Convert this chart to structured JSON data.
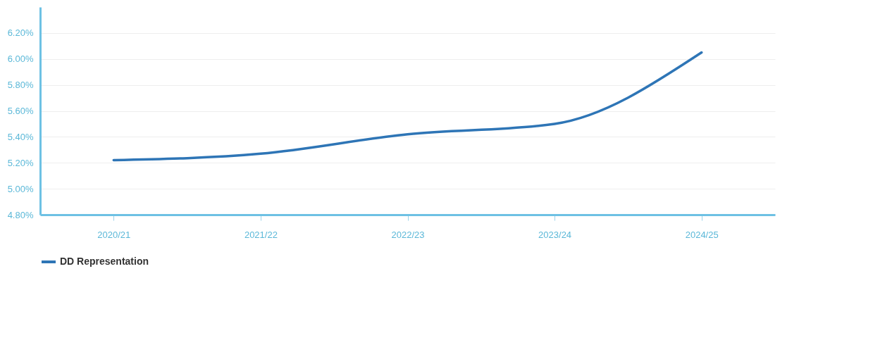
{
  "chart_data": {
    "type": "line",
    "categories": [
      "2020/21",
      "2021/22",
      "2022/23",
      "2023/24",
      "2024/25"
    ],
    "series": [
      {
        "name": "DD Representation",
        "color": "#2e75b6",
        "values": [
          5.22,
          5.27,
          5.42,
          5.5,
          6.05
        ]
      }
    ],
    "ylim": [
      4.8,
      6.4
    ],
    "yticks": [
      {
        "value": 4.8,
        "label": "4.80%"
      },
      {
        "value": 5.0,
        "label": "5.00%"
      },
      {
        "value": 5.2,
        "label": "5.20%"
      },
      {
        "value": 5.4,
        "label": "5.40%"
      },
      {
        "value": 5.6,
        "label": "5.60%"
      },
      {
        "value": 5.8,
        "label": "5.80%"
      },
      {
        "value": 6.0,
        "label": "6.00%"
      },
      {
        "value": 6.2,
        "label": "6.20%"
      }
    ],
    "grid": "y",
    "legend": "bottom",
    "marker": "none",
    "line_style": "solid"
  }
}
